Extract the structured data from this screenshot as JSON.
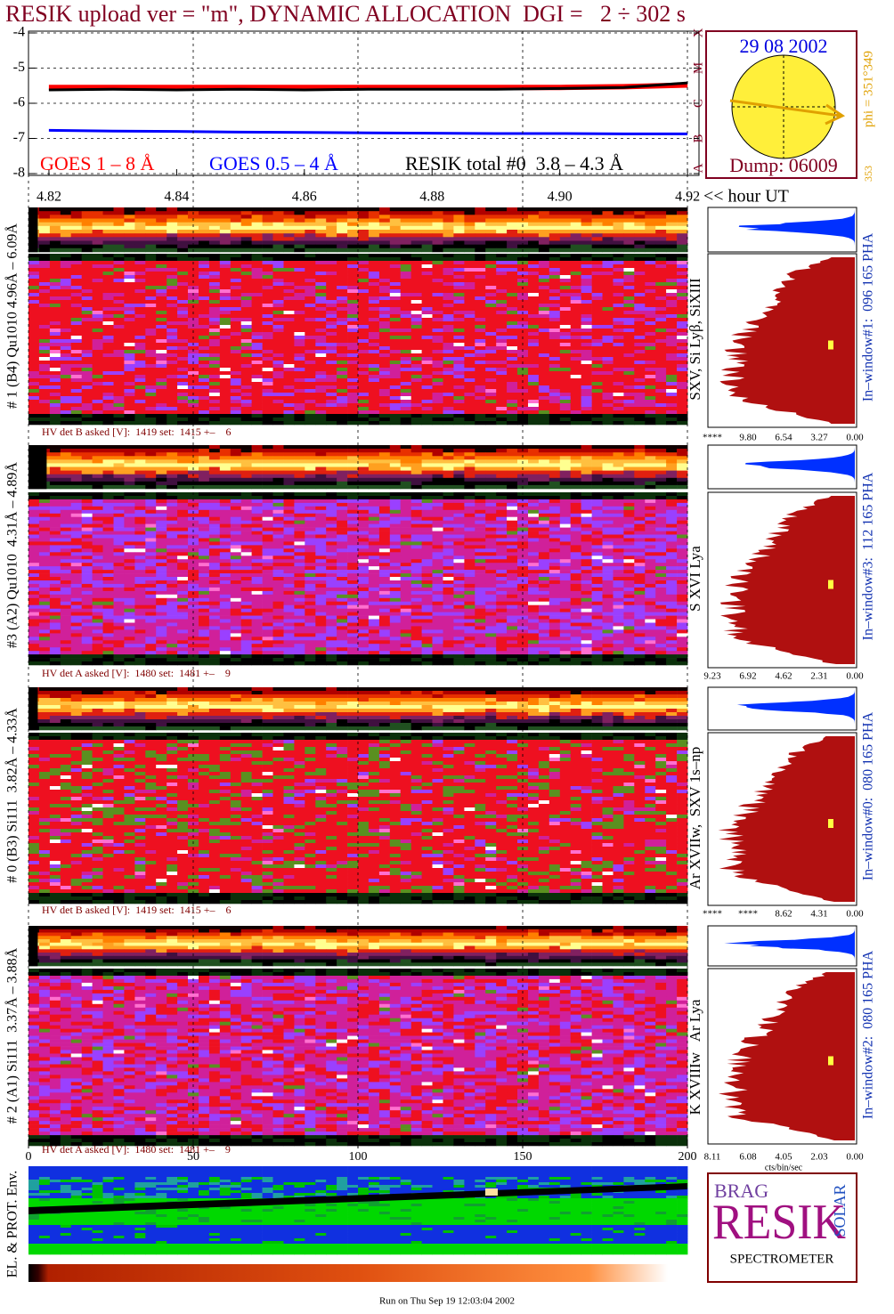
{
  "title": "RESIK upload ver = \"m\", DYNAMIC ALLOCATION  DGI =   2 ÷ 302 s",
  "chart_data": {
    "type": "line",
    "x": [
      4.82,
      4.83,
      4.84,
      4.85,
      4.86,
      4.87,
      4.88,
      4.89,
      4.9,
      4.91,
      4.92
    ],
    "xlim": [
      4.8168,
      4.9218
    ],
    "xticks": [
      4.82,
      4.84,
      4.86,
      4.88,
      {
        "value": 4.9,
        "label": "4.90"
      },
      4.92
    ],
    "x_label": "<< hour UT",
    "ylim": [
      -8,
      -4
    ],
    "yticks": [
      -8,
      -7,
      -6,
      -5,
      -4
    ],
    "y2lim": [
      -8,
      -4
    ],
    "y2ticks": [
      {
        "value": -8,
        "label": "A"
      },
      {
        "value": -7,
        "label": "B"
      },
      {
        "value": -6,
        "label": "C"
      },
      {
        "value": -5,
        "label": "M"
      },
      {
        "value": -4,
        "label": "X"
      }
    ],
    "grid": true,
    "series": [
      {
        "name": "GOES 1 – 8 Å",
        "color": "#ff0000",
        "values": [
          -5.55,
          -5.55,
          -5.55,
          -5.55,
          -5.55,
          -5.55,
          -5.55,
          -5.55,
          -5.55,
          -5.53,
          -5.48
        ]
      },
      {
        "name": "GOES 0.5 – 4 Å",
        "color": "#0000ff",
        "values": [
          -6.77,
          -6.79,
          -6.8,
          -6.82,
          -6.83,
          -6.84,
          -6.85,
          -6.86,
          -6.86,
          -6.87,
          -6.87
        ]
      },
      {
        "name": "RESIK total #0  3.8 – 4.3 Å",
        "color": "#000000",
        "values": [
          -5.62,
          -5.6,
          -5.62,
          -5.6,
          -5.62,
          -5.6,
          -5.6,
          -5.6,
          -5.58,
          -5.55,
          -5.42
        ]
      }
    ]
  },
  "sun": {
    "date": "29 08 2002",
    "dump": "Dump: 06009",
    "phi": "phi = 351°349",
    "phi_low": "353"
  },
  "index_axis": {
    "xlim": [
      0,
      200
    ],
    "xticks": [
      0,
      50,
      100,
      150,
      200
    ]
  },
  "panels": [
    {
      "left_label": "# 1 (B4) Qu1010 4.96Å – 6.09Å",
      "line_label": "SXV, Si Lyβ, SiXIII",
      "hv": "HV det B asked [V]:  1419 set:  1415 +–    6",
      "window": "In–window#1:  096 165 PHA",
      "hist_ticks": [
        "****",
        "9.80",
        "6.54",
        "3.27",
        "0.00"
      ]
    },
    {
      "left_label": "#3 (A2) Qu1010  4.31Å – 4.89Å",
      "line_label": "S XVI Lya",
      "hv": "HV det A asked [V]:  1480 set:  1481 +–    9",
      "window": "In–window#3:  112 165 PHA",
      "hist_ticks": [
        "9.23",
        "6.92",
        "4.62",
        "2.31",
        "0.00"
      ]
    },
    {
      "left_label": "# 0 (B3) Si111  3.82Å – 4.33Å",
      "line_label": "Ar XVIIw,  SXV 1s–np",
      "hv": "HV det B asked [V]:  1419 set:  1415 +–    6",
      "window": "In–window#0:  080 165 PHA",
      "hist_ticks": [
        "****",
        "****",
        "8.62",
        "4.31",
        "0.00"
      ]
    },
    {
      "left_label": "# 2 (A1) Si111  3.37Å – 3.88Å",
      "line_label": "K XVIIIw   Ar Lya",
      "hv": "HV det A asked [V]:  1480 set:  1481 +–    9",
      "window": "In–window#2:  080 165 PHA",
      "hist_ticks": [
        "8.11",
        "6.08",
        "4.05",
        "2.03",
        "0.00"
      ]
    }
  ],
  "hist_unit": "cts/bin/sec",
  "env_label": "EL. & PROT. Env.",
  "logo": {
    "bragg": "BRAG",
    "resik": "RESIK",
    "solar": "SOLAR",
    "caption": "SPECTROMETER"
  },
  "footer": "Run on Thu Sep 19 12:03:04 2002"
}
